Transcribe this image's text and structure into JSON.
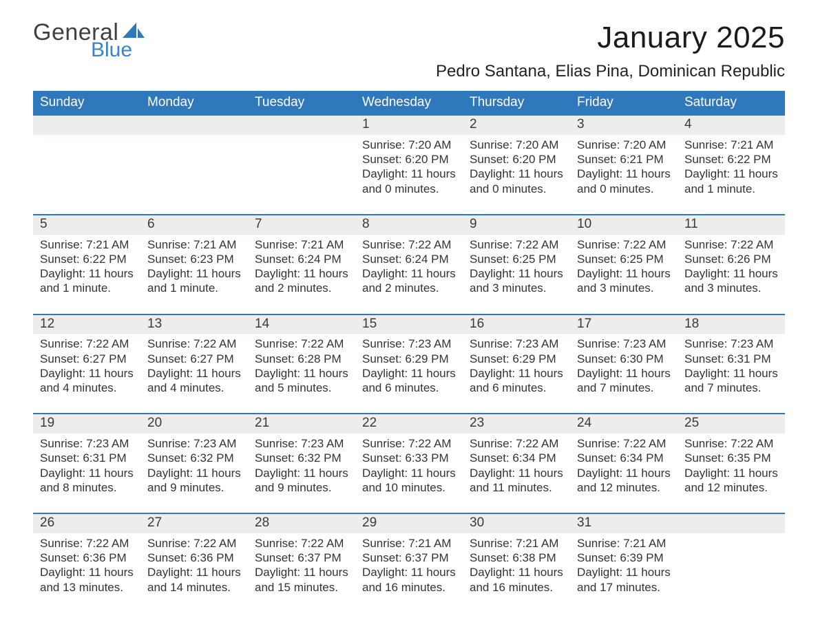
{
  "logo": {
    "word1": "General",
    "word2": "Blue"
  },
  "title": "January 2025",
  "location": "Pedro Santana, Elias Pina, Dominican Republic",
  "colors": {
    "header_bg": "#2f78bc",
    "accent_blue": "#3a84c7",
    "rule_blue": "#2f78bc",
    "grey_strip": "#eceded",
    "page_bg": "#ffffff",
    "text": "#222222"
  },
  "typography": {
    "title_fontsize_pt": 33,
    "location_fontsize_pt": 18,
    "weekday_fontsize_pt": 14,
    "daynum_fontsize_pt": 14,
    "body_fontsize_pt": 13,
    "font_family": "Arial"
  },
  "layout": {
    "columns": 7,
    "rows": 5,
    "start_day_index": 3
  },
  "weekdays": [
    "Sunday",
    "Monday",
    "Tuesday",
    "Wednesday",
    "Thursday",
    "Friday",
    "Saturday"
  ],
  "days": [
    {
      "n": 1,
      "sunrise": "7:20 AM",
      "sunset": "6:20 PM",
      "daylight": "11 hours and 0 minutes."
    },
    {
      "n": 2,
      "sunrise": "7:20 AM",
      "sunset": "6:20 PM",
      "daylight": "11 hours and 0 minutes."
    },
    {
      "n": 3,
      "sunrise": "7:20 AM",
      "sunset": "6:21 PM",
      "daylight": "11 hours and 0 minutes."
    },
    {
      "n": 4,
      "sunrise": "7:21 AM",
      "sunset": "6:22 PM",
      "daylight": "11 hours and 1 minute."
    },
    {
      "n": 5,
      "sunrise": "7:21 AM",
      "sunset": "6:22 PM",
      "daylight": "11 hours and 1 minute."
    },
    {
      "n": 6,
      "sunrise": "7:21 AM",
      "sunset": "6:23 PM",
      "daylight": "11 hours and 1 minute."
    },
    {
      "n": 7,
      "sunrise": "7:21 AM",
      "sunset": "6:24 PM",
      "daylight": "11 hours and 2 minutes."
    },
    {
      "n": 8,
      "sunrise": "7:22 AM",
      "sunset": "6:24 PM",
      "daylight": "11 hours and 2 minutes."
    },
    {
      "n": 9,
      "sunrise": "7:22 AM",
      "sunset": "6:25 PM",
      "daylight": "11 hours and 3 minutes."
    },
    {
      "n": 10,
      "sunrise": "7:22 AM",
      "sunset": "6:25 PM",
      "daylight": "11 hours and 3 minutes."
    },
    {
      "n": 11,
      "sunrise": "7:22 AM",
      "sunset": "6:26 PM",
      "daylight": "11 hours and 3 minutes."
    },
    {
      "n": 12,
      "sunrise": "7:22 AM",
      "sunset": "6:27 PM",
      "daylight": "11 hours and 4 minutes."
    },
    {
      "n": 13,
      "sunrise": "7:22 AM",
      "sunset": "6:27 PM",
      "daylight": "11 hours and 4 minutes."
    },
    {
      "n": 14,
      "sunrise": "7:22 AM",
      "sunset": "6:28 PM",
      "daylight": "11 hours and 5 minutes."
    },
    {
      "n": 15,
      "sunrise": "7:23 AM",
      "sunset": "6:29 PM",
      "daylight": "11 hours and 6 minutes."
    },
    {
      "n": 16,
      "sunrise": "7:23 AM",
      "sunset": "6:29 PM",
      "daylight": "11 hours and 6 minutes."
    },
    {
      "n": 17,
      "sunrise": "7:23 AM",
      "sunset": "6:30 PM",
      "daylight": "11 hours and 7 minutes."
    },
    {
      "n": 18,
      "sunrise": "7:23 AM",
      "sunset": "6:31 PM",
      "daylight": "11 hours and 7 minutes."
    },
    {
      "n": 19,
      "sunrise": "7:23 AM",
      "sunset": "6:31 PM",
      "daylight": "11 hours and 8 minutes."
    },
    {
      "n": 20,
      "sunrise": "7:23 AM",
      "sunset": "6:32 PM",
      "daylight": "11 hours and 9 minutes."
    },
    {
      "n": 21,
      "sunrise": "7:23 AM",
      "sunset": "6:32 PM",
      "daylight": "11 hours and 9 minutes."
    },
    {
      "n": 22,
      "sunrise": "7:22 AM",
      "sunset": "6:33 PM",
      "daylight": "11 hours and 10 minutes."
    },
    {
      "n": 23,
      "sunrise": "7:22 AM",
      "sunset": "6:34 PM",
      "daylight": "11 hours and 11 minutes."
    },
    {
      "n": 24,
      "sunrise": "7:22 AM",
      "sunset": "6:34 PM",
      "daylight": "11 hours and 12 minutes."
    },
    {
      "n": 25,
      "sunrise": "7:22 AM",
      "sunset": "6:35 PM",
      "daylight": "11 hours and 12 minutes."
    },
    {
      "n": 26,
      "sunrise": "7:22 AM",
      "sunset": "6:36 PM",
      "daylight": "11 hours and 13 minutes."
    },
    {
      "n": 27,
      "sunrise": "7:22 AM",
      "sunset": "6:36 PM",
      "daylight": "11 hours and 14 minutes."
    },
    {
      "n": 28,
      "sunrise": "7:22 AM",
      "sunset": "6:37 PM",
      "daylight": "11 hours and 15 minutes."
    },
    {
      "n": 29,
      "sunrise": "7:21 AM",
      "sunset": "6:37 PM",
      "daylight": "11 hours and 16 minutes."
    },
    {
      "n": 30,
      "sunrise": "7:21 AM",
      "sunset": "6:38 PM",
      "daylight": "11 hours and 16 minutes."
    },
    {
      "n": 31,
      "sunrise": "7:21 AM",
      "sunset": "6:39 PM",
      "daylight": "11 hours and 17 minutes."
    }
  ],
  "labels": {
    "sunrise": "Sunrise:",
    "sunset": "Sunset:",
    "daylight": "Daylight:"
  }
}
